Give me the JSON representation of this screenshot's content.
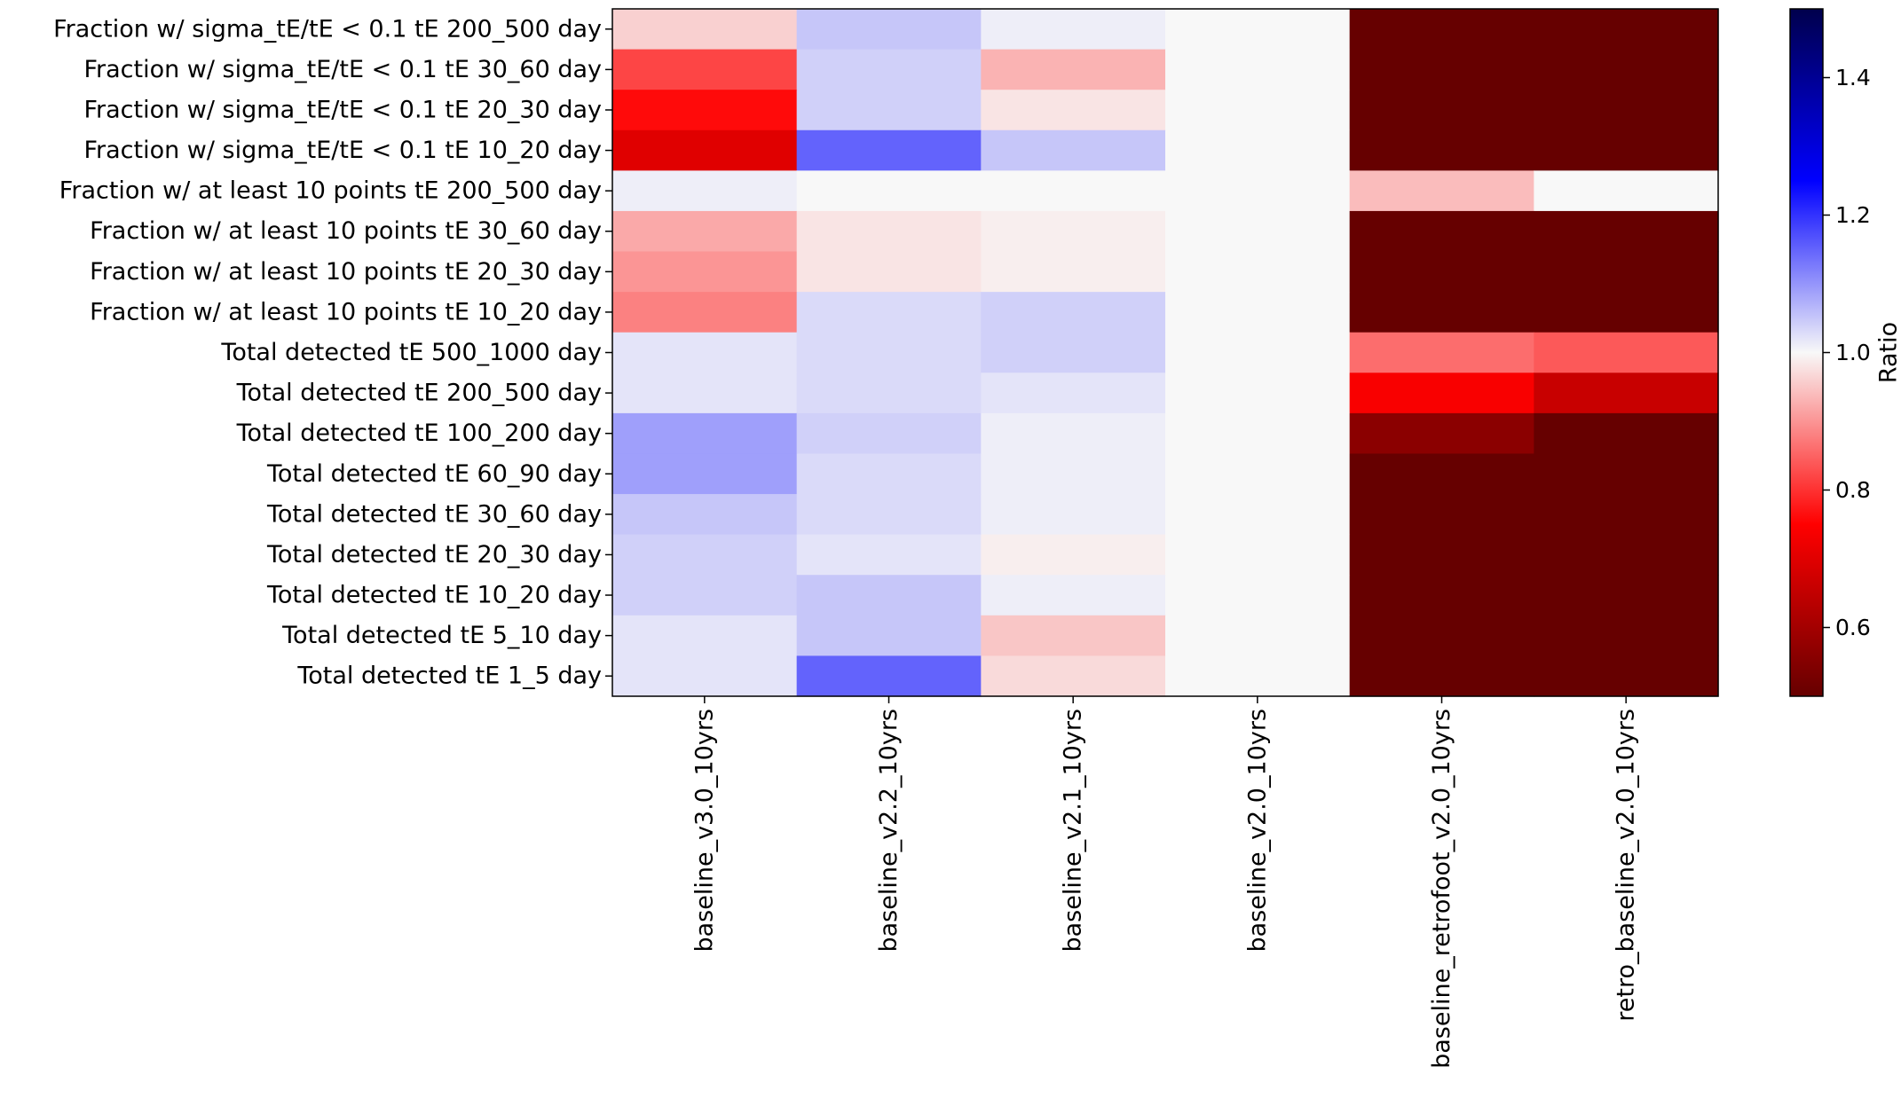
{
  "chart_data": {
    "type": "heatmap",
    "title": "",
    "xlabel": "",
    "ylabel": "",
    "x": [
      "baseline_v3.0_10yrs",
      "baseline_v2.2_10yrs",
      "baseline_v2.1_10yrs",
      "baseline_v2.0_10yrs",
      "baseline_retrofoot_v2.0_10yrs",
      "retro_baseline_v2.0_10yrs"
    ],
    "y": [
      "Fraction w/ sigma_tE/tE < 0.1 tE 200_500 day",
      "Fraction w/ sigma_tE/tE < 0.1 tE 30_60 day",
      "Fraction w/ sigma_tE/tE < 0.1 tE 20_30 day",
      "Fraction w/ sigma_tE/tE < 0.1 tE 10_20 day",
      "Fraction w/ at least 10 points tE 200_500 day",
      "Fraction w/ at least 10 points tE 30_60 day",
      "Fraction w/ at least 10 points tE 20_30 day",
      "Fraction w/ at least 10 points tE 10_20 day",
      "Total detected tE 500_1000 day",
      "Total detected tE 200_500 day",
      "Total detected tE 100_200 day",
      "Total detected tE 60_90 day",
      "Total detected tE 30_60 day",
      "Total detected tE 20_30 day",
      "Total detected tE 10_20 day",
      "Total detected tE 5_10 day",
      "Total detected tE 1_5 day"
    ],
    "values": [
      [
        0.96,
        1.05,
        1.01,
        1.0,
        0.5,
        0.5
      ],
      [
        0.82,
        1.04,
        0.93,
        1.0,
        0.5,
        0.5
      ],
      [
        0.76,
        1.04,
        0.98,
        1.0,
        0.5,
        0.5
      ],
      [
        0.7,
        1.15,
        1.05,
        1.0,
        0.5,
        0.5
      ],
      [
        1.01,
        1.0,
        1.0,
        1.0,
        0.94,
        1.0
      ],
      [
        0.92,
        0.98,
        0.99,
        1.0,
        0.5,
        0.5
      ],
      [
        0.9,
        0.98,
        0.99,
        1.0,
        0.5,
        0.5
      ],
      [
        0.88,
        1.03,
        1.04,
        1.0,
        0.5,
        0.5
      ],
      [
        1.02,
        1.03,
        1.04,
        1.0,
        0.86,
        0.84
      ],
      [
        1.02,
        1.03,
        1.02,
        1.0,
        0.74,
        0.66
      ],
      [
        1.09,
        1.04,
        1.01,
        1.0,
        0.56,
        0.5
      ],
      [
        1.09,
        1.03,
        1.01,
        1.0,
        0.5,
        0.5
      ],
      [
        1.05,
        1.03,
        1.01,
        1.0,
        0.5,
        0.5
      ],
      [
        1.04,
        1.02,
        0.99,
        1.0,
        0.5,
        0.5
      ],
      [
        1.04,
        1.05,
        1.01,
        1.0,
        0.5,
        0.5
      ],
      [
        1.02,
        1.05,
        0.95,
        1.0,
        0.5,
        0.5
      ],
      [
        1.02,
        1.15,
        0.97,
        1.0,
        0.5,
        0.5
      ]
    ],
    "colormap": "seismic_r",
    "vmin": 0.5,
    "vmax": 1.5,
    "colorbar": {
      "label": "Ratio",
      "ticks": [
        0.6,
        0.8,
        1.0,
        1.2,
        1.4
      ],
      "tick_labels": [
        "0.6",
        "0.8",
        "1.0",
        "1.2",
        "1.4"
      ],
      "placement": "right"
    },
    "grid": false
  }
}
